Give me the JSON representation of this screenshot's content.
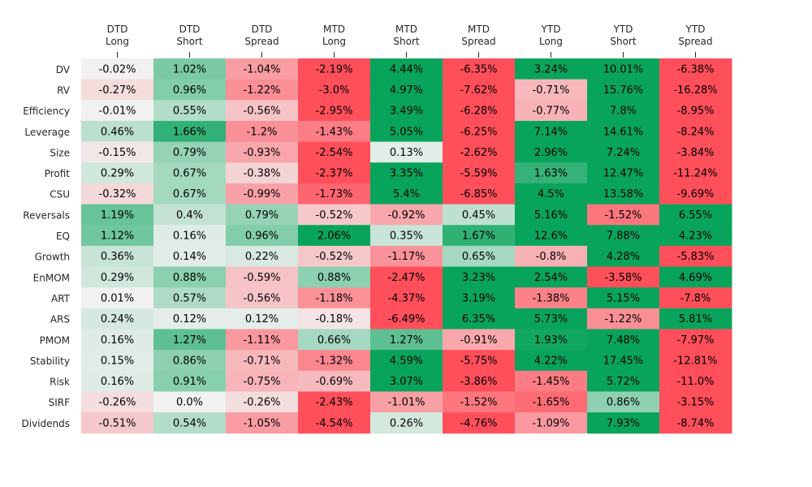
{
  "chart_data": {
    "type": "heatmap",
    "columns": [
      [
        "DTD",
        "Long"
      ],
      [
        "DTD",
        "Short"
      ],
      [
        "DTD",
        "Spread"
      ],
      [
        "MTD",
        "Long"
      ],
      [
        "MTD",
        "Short"
      ],
      [
        "MTD",
        "Spread"
      ],
      [
        "YTD",
        "Long"
      ],
      [
        "YTD",
        "Short"
      ],
      [
        "YTD",
        "Spread"
      ]
    ],
    "rows": [
      "DV",
      "RV",
      "Efficiency",
      "Leverage",
      "Size",
      "Profit",
      "CSU",
      "Reversals",
      "EQ",
      "Growth",
      "EnMOM",
      "ART",
      "ARS",
      "PMOM",
      "Stability",
      "Risk",
      "SIRF",
      "Dividends"
    ],
    "values": [
      [
        -0.02,
        1.02,
        -1.04,
        -2.19,
        4.44,
        -6.35,
        3.24,
        10.01,
        -6.38
      ],
      [
        -0.27,
        0.96,
        -1.22,
        -3.0,
        4.97,
        -7.62,
        -0.71,
        15.76,
        -16.28
      ],
      [
        -0.01,
        0.55,
        -0.56,
        -2.95,
        3.49,
        -6.28,
        -0.77,
        7.8,
        -8.95
      ],
      [
        0.46,
        1.66,
        -1.2,
        -1.43,
        5.05,
        -6.25,
        7.14,
        14.61,
        -8.24
      ],
      [
        -0.15,
        0.79,
        -0.93,
        -2.54,
        0.13,
        -2.62,
        2.96,
        7.24,
        -3.84
      ],
      [
        0.29,
        0.67,
        -0.38,
        -2.37,
        3.35,
        -5.59,
        1.63,
        12.47,
        -11.24
      ],
      [
        -0.32,
        0.67,
        -0.99,
        -1.73,
        5.4,
        -6.85,
        4.5,
        13.58,
        -9.69
      ],
      [
        1.19,
        0.4,
        0.79,
        -0.52,
        -0.92,
        0.45,
        5.16,
        -1.52,
        6.55
      ],
      [
        1.12,
        0.16,
        0.96,
        2.06,
        0.35,
        1.67,
        12.6,
        7.88,
        4.23
      ],
      [
        0.36,
        0.14,
        0.22,
        -0.52,
        -1.17,
        0.65,
        -0.8,
        4.28,
        -5.83
      ],
      [
        0.29,
        0.88,
        -0.59,
        0.88,
        -2.47,
        3.23,
        2.54,
        -3.58,
        4.69
      ],
      [
        0.01,
        0.57,
        -0.56,
        -1.18,
        -4.37,
        3.19,
        -1.38,
        5.15,
        -7.8
      ],
      [
        0.24,
        0.12,
        0.12,
        -0.18,
        -6.49,
        6.35,
        5.73,
        -1.22,
        5.81
      ],
      [
        0.16,
        1.27,
        -1.11,
        0.66,
        1.27,
        -0.91,
        1.93,
        7.48,
        -7.97
      ],
      [
        0.15,
        0.86,
        -0.71,
        -1.32,
        4.59,
        -5.75,
        4.22,
        17.45,
        -12.81
      ],
      [
        0.16,
        0.91,
        -0.75,
        -0.69,
        3.07,
        -3.86,
        -1.45,
        5.72,
        -11.0
      ],
      [
        -0.26,
        0.0,
        -0.26,
        -2.43,
        -1.01,
        -1.52,
        -1.65,
        0.86,
        -3.15
      ],
      [
        -0.51,
        0.54,
        -1.05,
        -4.54,
        0.26,
        -4.76,
        -1.09,
        7.93,
        -8.74
      ]
    ],
    "value_suffix": "%",
    "color_scale": {
      "negative": "#ff4f5a",
      "neutral": "#f2f2f2",
      "positive": "#09a45b",
      "range": [
        -2,
        2
      ]
    },
    "xaxis_position": "top",
    "grid": false,
    "legend": "none"
  }
}
